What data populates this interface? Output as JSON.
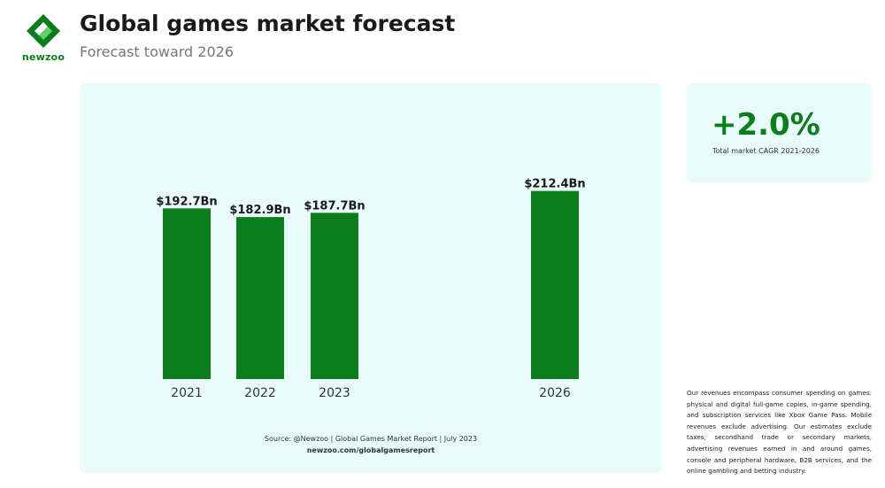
{
  "header": {
    "logo_text": "newzoo",
    "title": "Global games market forecast",
    "subtitle": "Forecast toward 2026"
  },
  "chart_data": {
    "type": "bar",
    "title": "Global games market forecast",
    "subtitle": "Forecast toward 2026",
    "categories": [
      "2021",
      "2022",
      "2023",
      "2026"
    ],
    "values": [
      192.7,
      182.9,
      187.7,
      212.4
    ],
    "value_labels": [
      "$192.7Bn",
      "$182.9Bn",
      "$187.7Bn",
      "$212.4Bn"
    ],
    "units": "$Bn",
    "xlabel": "",
    "ylabel": "",
    "grid": false,
    "legend": "none",
    "bar_color": "#0b7d1c"
  },
  "source": {
    "line1": "Source: @Newzoo | Global Games Market Report | July 2023",
    "line2": "newzoo.com/globalgamesreport"
  },
  "cagr": {
    "value": "+2.0%",
    "label": "Total market CAGR 2021-2026"
  },
  "footnote": "Our revenues encompass consumer spending on games: physical and digital full-game copies, in-game spending, and subscription services like Xbox Game Pass. Mobile revenues exclude advertising. Our estimates exclude taxes, secondhand trade or secondary markets, advertising revenues earned in and around games, console and peripheral hardware, B2B services, and the online gambling and betting industry.",
  "colors": {
    "brand_green": "#0b7d1c",
    "panel_bg": "#e9fbfb"
  }
}
